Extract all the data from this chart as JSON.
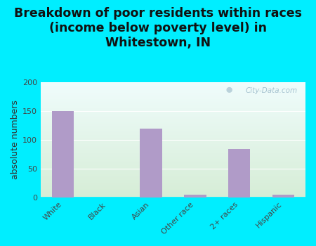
{
  "categories": [
    "White",
    "Black",
    "Asian",
    "Other race",
    "2+ races",
    "Hispanic"
  ],
  "values": [
    150,
    0,
    119,
    5,
    84,
    5
  ],
  "bar_color": "#b09bc8",
  "background_outer": "#00eeff",
  "title": "Breakdown of poor residents within races\n(income below poverty level) in\nWhitestown, IN",
  "ylabel": "absolute numbers",
  "ylim": [
    0,
    200
  ],
  "yticks": [
    0,
    50,
    100,
    150,
    200
  ],
  "title_fontsize": 12.5,
  "axis_label_fontsize": 9,
  "tick_fontsize": 8,
  "watermark": "City-Data.com",
  "gradient_top": "#f0fafa",
  "gradient_bottom": "#d8edd8"
}
